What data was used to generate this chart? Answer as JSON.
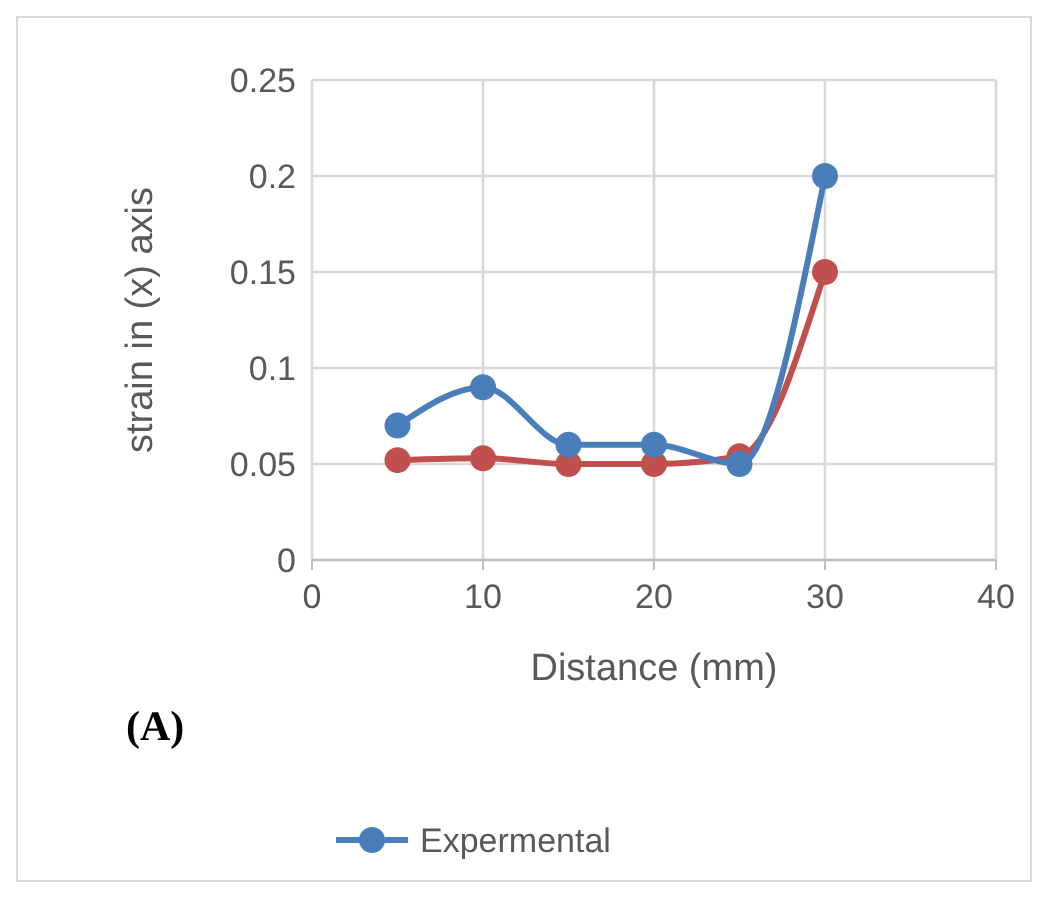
{
  "chart_data": {
    "type": "line",
    "xlabel": "Distance (mm)",
    "ylabel": "strain in (x) axis",
    "annotations": [
      "(A)"
    ],
    "x": [
      5,
      10,
      15,
      20,
      25,
      30
    ],
    "series": [
      {
        "name": "Expermental",
        "color": "#4a7ebb",
        "values": [
          0.07,
          0.09,
          0.06,
          0.06,
          0.05,
          0.2
        ]
      },
      {
        "color": "#c0504d",
        "values": [
          0.052,
          0.053,
          0.05,
          0.05,
          0.054,
          0.15
        ]
      }
    ],
    "xlim": [
      0,
      40
    ],
    "xticks": [
      0,
      10,
      20,
      30,
      40
    ],
    "ylim": [
      0,
      0.25
    ],
    "yticks": [
      0,
      0.05,
      0.1,
      0.15,
      0.2,
      0.25
    ],
    "grid": true,
    "legend": "bottom",
    "marker": "circle",
    "line_style": "solid"
  }
}
